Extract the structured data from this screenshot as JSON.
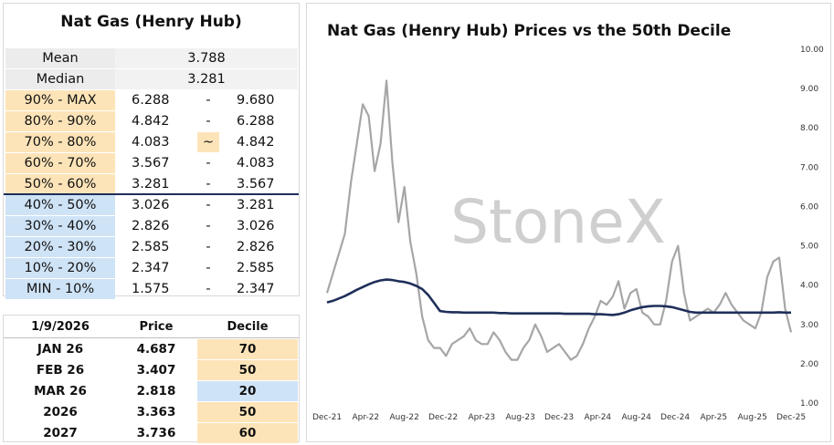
{
  "left_table": {
    "title": "Nat Gas (Henry Hub)",
    "mean_label": "Mean",
    "mean_value": "3.788",
    "median_label": "Median",
    "median_value": "3.281",
    "deciles": [
      {
        "label": "90% - MAX",
        "low": "6.288",
        "sep": "-",
        "high": "9.680",
        "color": "#fde4b8"
      },
      {
        "label": "80% - 90%",
        "low": "4.842",
        "sep": "-",
        "high": "6.288",
        "color": "#fde4b8"
      },
      {
        "label": "70% - 80%",
        "low": "4.083",
        "sep": "~",
        "high": "4.842",
        "color": "#fde4b8"
      },
      {
        "label": "60% - 70%",
        "low": "3.567",
        "sep": "-",
        "high": "4.083",
        "color": "#fde4b8"
      },
      {
        "label": "50% - 60%",
        "low": "3.281",
        "sep": "-",
        "high": "3.567",
        "color": "#fde4b8"
      },
      {
        "label": "40% - 50%",
        "low": "3.026",
        "sep": "-",
        "high": "3.281",
        "color": "#cfe3f7"
      },
      {
        "label": "30% - 40%",
        "low": "2.826",
        "sep": "-",
        "high": "3.026",
        "color": "#cfe3f7"
      },
      {
        "label": "20% - 30%",
        "low": "2.585",
        "sep": "-",
        "high": "2.826",
        "color": "#cfe3f7"
      },
      {
        "label": "10% - 20%",
        "low": "2.347",
        "sep": "-",
        "high": "2.585",
        "color": "#cfe3f7"
      },
      {
        "label": "MIN - 10%",
        "low": "1.575",
        "sep": "-",
        "high": "2.347",
        "color": "#cfe3f7"
      }
    ]
  },
  "price_table": {
    "date": "1/9/2026",
    "price_header": "Price",
    "decile_header": "Decile",
    "rows": [
      {
        "label": "JAN 26",
        "price": "4.687",
        "decile": "70",
        "color": "#fde4b8"
      },
      {
        "label": "FEB 26",
        "price": "3.407",
        "decile": "50",
        "color": "#fde4b8"
      },
      {
        "label": "MAR 26",
        "price": "2.818",
        "decile": "20",
        "color": "#cfe3f7"
      },
      {
        "label": "2026",
        "price": "3.363",
        "decile": "50",
        "color": "#fde4b8"
      },
      {
        "label": "2027",
        "price": "3.736",
        "decile": "60",
        "color": "#fde4b8"
      }
    ]
  },
  "watermark": "StoneX",
  "chart_data": {
    "type": "line",
    "title": "Nat Gas (Henry Hub) Prices vs the 50th Decile",
    "xlabel": "",
    "ylabel": "",
    "ylim": [
      1.0,
      10.0
    ],
    "yticks": [
      "1.00",
      "2.00",
      "3.00",
      "4.00",
      "5.00",
      "6.00",
      "7.00",
      "8.00",
      "9.00",
      "10.00"
    ],
    "x_tick_labels": [
      "Dec-21",
      "Apr-22",
      "Aug-22",
      "Dec-22",
      "Apr-23",
      "Aug-23",
      "Dec-23",
      "Apr-24",
      "Aug-24",
      "Dec-24",
      "Apr-25",
      "Aug-25",
      "Dec-25"
    ],
    "colors": {
      "price": "#a6a6a6",
      "decile": "#1f2f5a"
    },
    "series": [
      {
        "values": [
          3.8,
          4.3,
          4.8,
          5.3,
          6.6,
          7.6,
          8.6,
          8.3,
          6.9,
          7.6,
          9.2,
          7.1,
          5.6,
          6.5,
          5.1,
          4.3,
          3.2,
          2.6,
          2.4,
          2.4,
          2.2,
          2.5,
          2.6,
          2.7,
          2.9,
          2.6,
          2.5,
          2.5,
          2.8,
          2.6,
          2.3,
          2.1,
          2.1,
          2.4,
          2.6,
          3.0,
          2.7,
          2.3,
          2.4,
          2.5,
          2.3,
          2.1,
          2.2,
          2.5,
          2.9,
          3.2,
          3.6,
          3.5,
          3.7,
          4.1,
          3.4,
          3.8,
          3.9,
          3.3,
          3.2,
          3.0,
          3.0,
          3.6,
          4.6,
          5.0,
          3.8,
          3.1,
          3.2,
          3.3,
          3.4,
          3.3,
          3.5,
          3.8,
          3.5,
          3.3,
          3.1,
          3.0,
          2.9,
          3.3,
          4.2,
          4.6,
          4.7,
          3.4,
          2.8
        ]
      },
      {
        "values": [
          3.56,
          3.6,
          3.66,
          3.72,
          3.8,
          3.88,
          3.95,
          4.02,
          4.08,
          4.12,
          4.14,
          4.13,
          4.1,
          4.08,
          4.04,
          3.98,
          3.9,
          3.75,
          3.55,
          3.34,
          3.32,
          3.31,
          3.31,
          3.3,
          3.3,
          3.3,
          3.3,
          3.3,
          3.3,
          3.29,
          3.29,
          3.28,
          3.28,
          3.28,
          3.28,
          3.28,
          3.28,
          3.28,
          3.28,
          3.28,
          3.27,
          3.27,
          3.27,
          3.27,
          3.27,
          3.26,
          3.26,
          3.25,
          3.24,
          3.26,
          3.3,
          3.36,
          3.4,
          3.44,
          3.46,
          3.47,
          3.47,
          3.46,
          3.44,
          3.4,
          3.36,
          3.32,
          3.3,
          3.3,
          3.3,
          3.3,
          3.3,
          3.3,
          3.3,
          3.3,
          3.3,
          3.3,
          3.3,
          3.3,
          3.3,
          3.3,
          3.31,
          3.3,
          3.3
        ]
      }
    ]
  }
}
